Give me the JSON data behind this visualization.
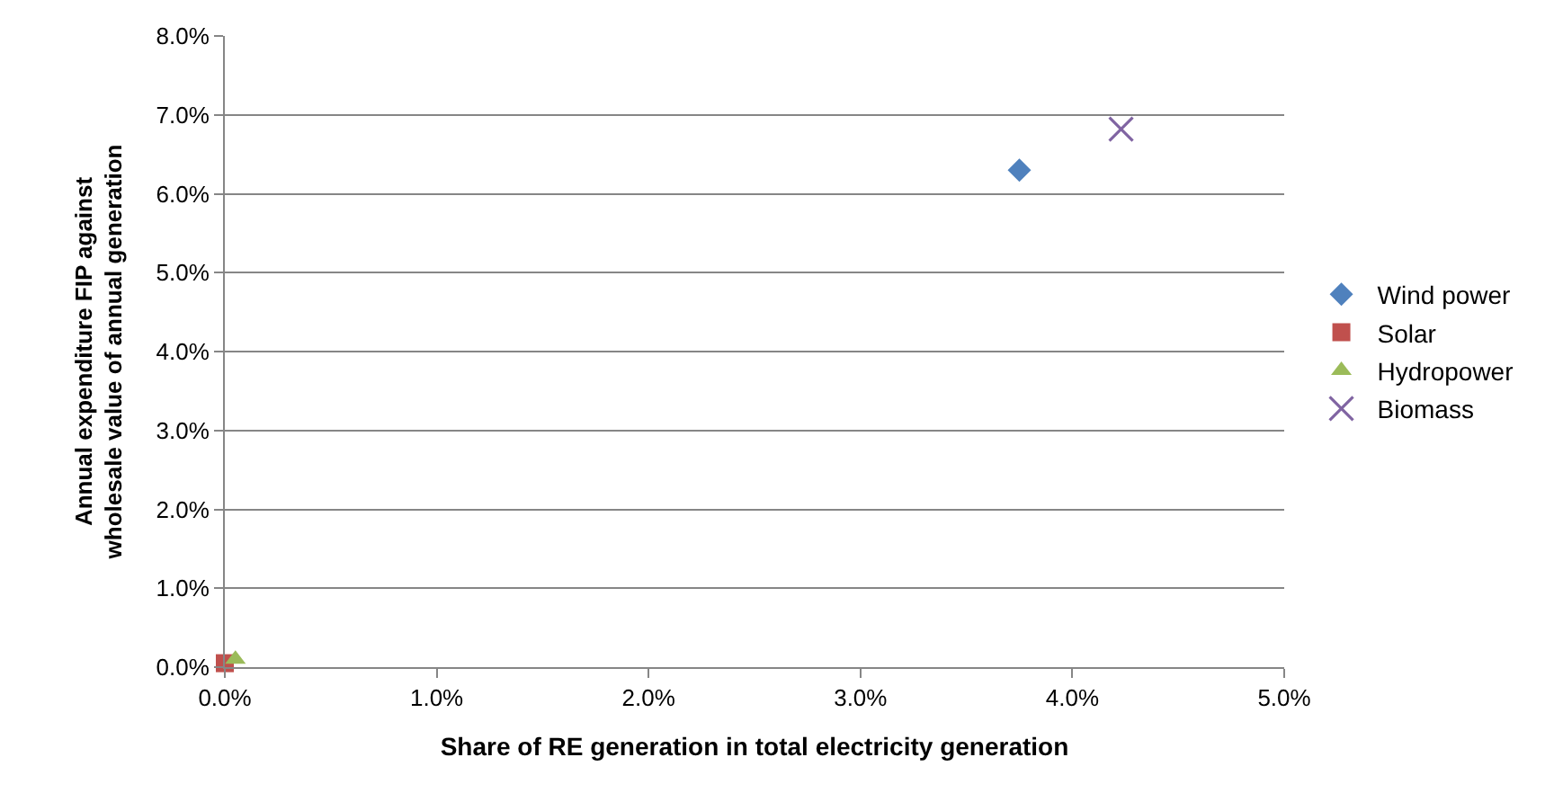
{
  "chart_data": {
    "type": "scatter",
    "xlabel": "Share of RE generation in total electricity generation",
    "ylabel": "Annual expenditure FIP against wholesale value of annual generation",
    "xlim": [
      0,
      5
    ],
    "ylim": [
      0,
      8
    ],
    "xticks": [
      {
        "value": 0,
        "label": "0.0%"
      },
      {
        "value": 1,
        "label": "1.0%"
      },
      {
        "value": 2,
        "label": "2.0%"
      },
      {
        "value": 3,
        "label": "3.0%"
      },
      {
        "value": 4,
        "label": "4.0%"
      },
      {
        "value": 5,
        "label": "5.0%"
      }
    ],
    "yticks": [
      {
        "value": 0,
        "label": "0.0%"
      },
      {
        "value": 1,
        "label": "1.0%"
      },
      {
        "value": 2,
        "label": "2.0%"
      },
      {
        "value": 3,
        "label": "3.0%"
      },
      {
        "value": 4,
        "label": "4.0%"
      },
      {
        "value": 5,
        "label": "5.0%"
      },
      {
        "value": 6,
        "label": "6.0%"
      },
      {
        "value": 7,
        "label": "7.0%"
      },
      {
        "value": 8,
        "label": "8.0%"
      }
    ],
    "grid": "y",
    "legend": "right",
    "series": [
      {
        "name": "Wind power",
        "color": "#4f81bd",
        "marker": "diamond",
        "x": [
          3.75
        ],
        "values": [
          6.3
        ]
      },
      {
        "name": "Solar",
        "color": "#c0504d",
        "marker": "square",
        "x": [
          0.0
        ],
        "values": [
          0.05
        ]
      },
      {
        "name": "Hydropower",
        "color": "#9bbb59",
        "marker": "triangle",
        "x": [
          0.05
        ],
        "values": [
          0.1
        ]
      },
      {
        "name": "Biomass",
        "color": "#8064a2",
        "marker": "cross",
        "x": [
          4.23
        ],
        "values": [
          6.82
        ]
      }
    ]
  }
}
